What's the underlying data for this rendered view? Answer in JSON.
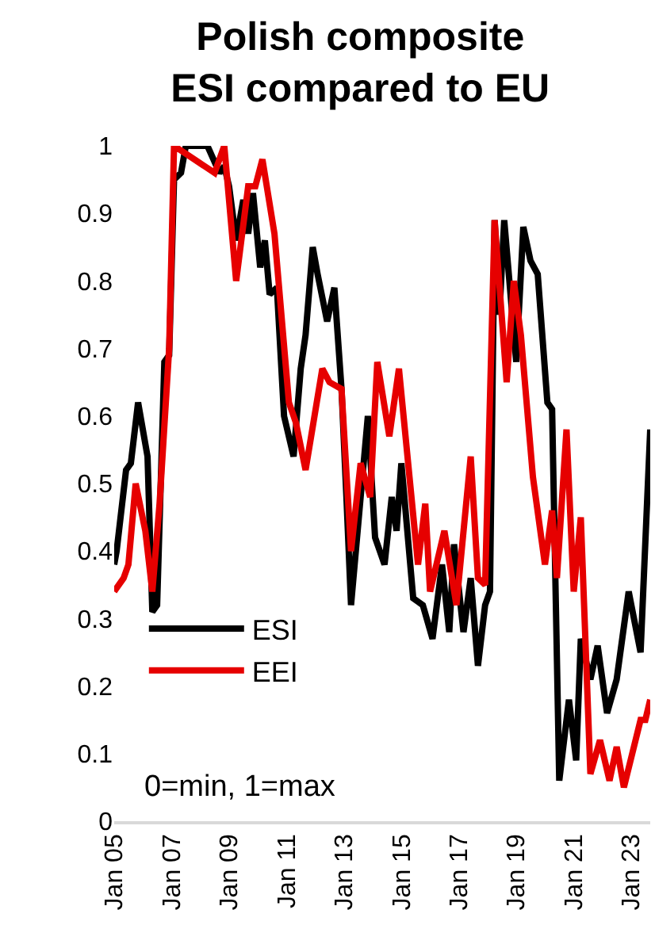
{
  "chart_data": {
    "type": "line",
    "title": "Polish composite\nESI compared to EU",
    "x": [
      "2005-01",
      "2005-02",
      "2005-06",
      "2005-08",
      "2005-11",
      "2006-03",
      "2006-05",
      "2006-07",
      "2006-10",
      "2006-12",
      "2007-02",
      "2007-05",
      "2007-07",
      "2008-04",
      "2008-09",
      "2008-11",
      "2009-01",
      "2009-04",
      "2009-07",
      "2009-09",
      "2009-11",
      "2010-02",
      "2010-04",
      "2010-06",
      "2010-09",
      "2010-12",
      "2011-04",
      "2011-07",
      "2011-09",
      "2011-12",
      "2012-02",
      "2012-06",
      "2012-09",
      "2012-12",
      "2013-02",
      "2013-04",
      "2013-08",
      "2013-11",
      "2014-02",
      "2014-06",
      "2014-09",
      "2014-11",
      "2015-01",
      "2015-06",
      "2015-10",
      "2016-02",
      "2016-06",
      "2016-09",
      "2016-11",
      "2017-03",
      "2017-06",
      "2017-09",
      "2017-12",
      "2018-02",
      "2018-04",
      "2018-06",
      "2018-08",
      "2019-01",
      "2019-04",
      "2019-07",
      "2019-10",
      "2020-02",
      "2020-04",
      "2020-07",
      "2020-11",
      "2021-02",
      "2021-04",
      "2021-08",
      "2021-11",
      "2022-03",
      "2022-07",
      "2022-12",
      "2023-05",
      "2023-09"
    ],
    "series": [
      {
        "name": "ESI",
        "color": "#000000",
        "values": [
          0.38,
          0.4,
          0.52,
          0.53,
          0.62,
          0.54,
          0.31,
          0.32,
          0.68,
          0.69,
          0.95,
          0.96,
          1.0,
          1.0,
          0.96,
          0.97,
          0.94,
          0.86,
          0.92,
          0.87,
          0.93,
          0.82,
          0.86,
          0.78,
          0.79,
          0.6,
          0.54,
          0.67,
          0.72,
          0.85,
          0.81,
          0.74,
          0.79,
          0.64,
          0.48,
          0.32,
          0.48,
          0.6,
          0.42,
          0.38,
          0.48,
          0.43,
          0.53,
          0.33,
          0.32,
          0.27,
          0.38,
          0.28,
          0.41,
          0.28,
          0.36,
          0.23,
          0.32,
          0.34,
          0.89,
          0.75,
          0.89,
          0.68,
          0.88,
          0.83,
          0.81,
          0.62,
          0.61,
          0.06,
          0.18,
          0.09,
          0.27,
          0.21,
          0.26,
          0.16,
          0.21,
          0.34,
          0.25,
          0.58
        ]
      },
      {
        "name": "EEI",
        "color": "#e60000",
        "x": [
          "2005-01",
          "2005-05",
          "2005-07",
          "2005-10",
          "2006-02",
          "2006-05",
          "2006-08",
          "2006-12",
          "2007-02",
          "2008-07",
          "2008-11",
          "2009-04",
          "2009-09",
          "2009-12",
          "2010-03",
          "2010-08",
          "2011-02",
          "2011-05",
          "2011-09",
          "2012-04",
          "2012-07",
          "2012-12",
          "2013-04",
          "2013-08",
          "2013-12",
          "2014-03",
          "2014-08",
          "2014-12",
          "2015-08",
          "2015-11",
          "2016-01",
          "2016-07",
          "2016-12",
          "2017-06",
          "2017-09",
          "2017-12",
          "2018-04",
          "2018-09",
          "2018-12",
          "2019-03",
          "2019-08",
          "2020-01",
          "2020-04",
          "2020-06",
          "2020-10",
          "2021-01",
          "2021-04",
          "2021-08",
          "2021-12",
          "2022-04",
          "2022-07",
          "2022-10",
          "2023-05",
          "2023-07",
          "2023-09"
        ],
        "values": [
          0.34,
          0.36,
          0.38,
          0.5,
          0.43,
          0.34,
          0.47,
          0.7,
          1.0,
          0.96,
          1.0,
          0.8,
          0.94,
          0.94,
          0.98,
          0.87,
          0.62,
          0.59,
          0.52,
          0.67,
          0.65,
          0.64,
          0.4,
          0.53,
          0.48,
          0.68,
          0.57,
          0.67,
          0.38,
          0.47,
          0.34,
          0.43,
          0.32,
          0.54,
          0.36,
          0.35,
          0.89,
          0.65,
          0.8,
          0.72,
          0.51,
          0.38,
          0.46,
          0.36,
          0.58,
          0.34,
          0.45,
          0.07,
          0.12,
          0.06,
          0.11,
          0.05,
          0.15,
          0.15,
          0.18
        ]
      }
    ],
    "annotations": [
      "0=min, 1=max"
    ],
    "xlim": [
      "2005-01",
      "2023-09"
    ],
    "xticks": [
      {
        "value": "2005-01",
        "label": "Jan 05"
      },
      {
        "value": "2007-01",
        "label": "Jan 07"
      },
      {
        "value": "2009-01",
        "label": "Jan 09"
      },
      {
        "value": "2011-01",
        "label": "Jan 11"
      },
      {
        "value": "2013-01",
        "label": "Jan 13"
      },
      {
        "value": "2015-01",
        "label": "Jan 15"
      },
      {
        "value": "2017-01",
        "label": "Jan 17"
      },
      {
        "value": "2019-01",
        "label": "Jan 19"
      },
      {
        "value": "2021-01",
        "label": "Jan 21"
      },
      {
        "value": "2023-01",
        "label": "Jan 23"
      }
    ],
    "ylim": [
      0,
      1
    ],
    "yticks": [
      0,
      0.1,
      0.2,
      0.3,
      0.4,
      0.5,
      0.6,
      0.7,
      0.8,
      0.9,
      1
    ],
    "legend": "bottom left",
    "marker": "none",
    "line_style": "solid"
  }
}
